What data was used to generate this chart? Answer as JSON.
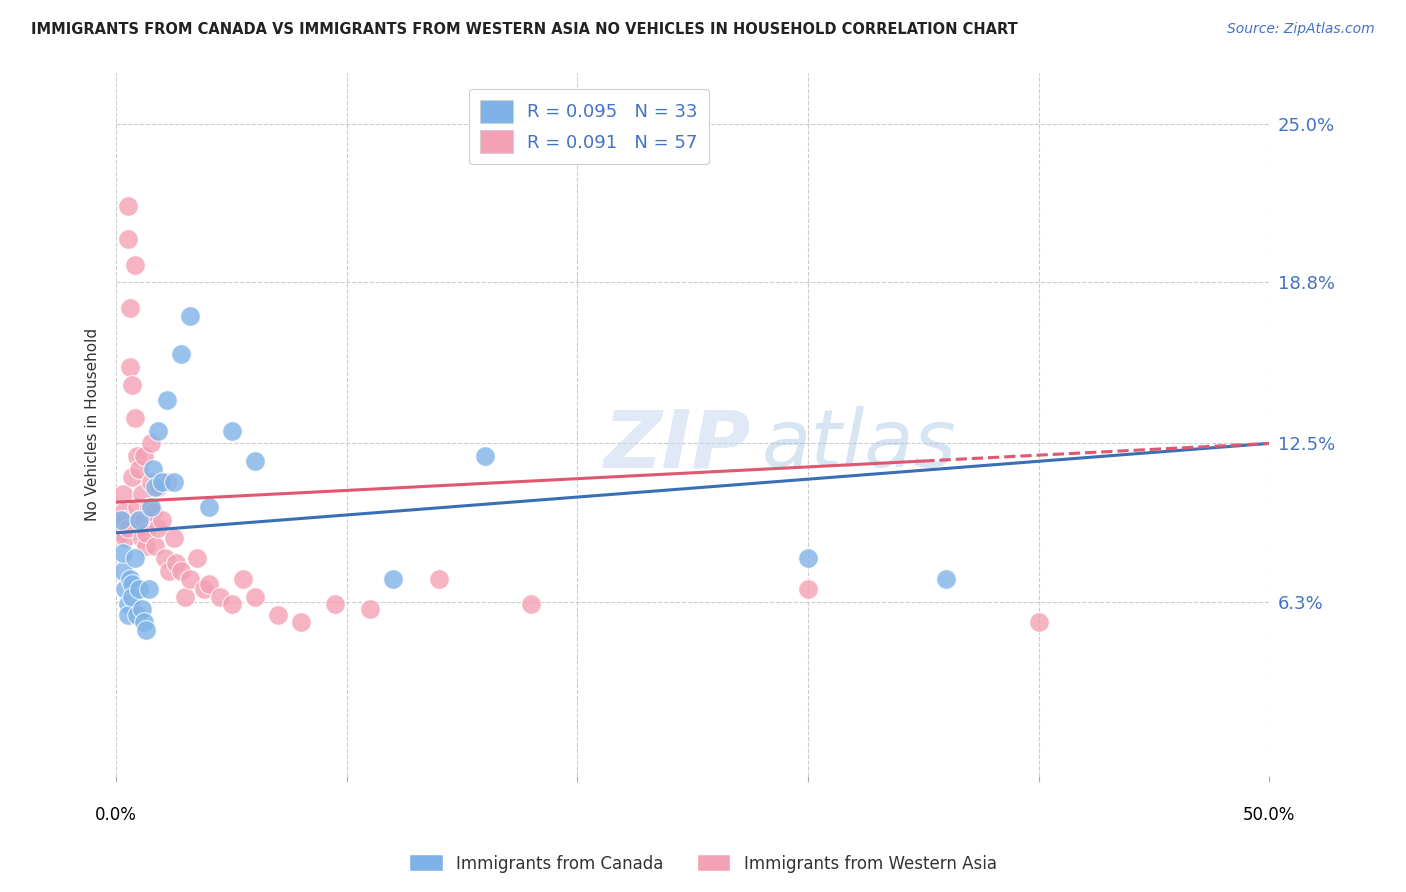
{
  "title": "IMMIGRANTS FROM CANADA VS IMMIGRANTS FROM WESTERN ASIA NO VEHICLES IN HOUSEHOLD CORRELATION CHART",
  "source": "Source: ZipAtlas.com",
  "ylabel": "No Vehicles in Household",
  "ytick_labels": [
    "6.3%",
    "12.5%",
    "18.8%",
    "25.0%"
  ],
  "ytick_values": [
    0.063,
    0.125,
    0.188,
    0.25
  ],
  "xlim": [
    0.0,
    0.5
  ],
  "ylim": [
    -0.005,
    0.27
  ],
  "r_canada": 0.095,
  "n_canada": 33,
  "r_western_asia": 0.091,
  "n_western_asia": 57,
  "color_canada": "#7FB3E8",
  "color_western_asia": "#F4A0B5",
  "trendline_canada": "#3A6FB5",
  "trendline_western_asia": "#E05870",
  "watermark_zip": "ZIP",
  "watermark_atlas": "atlas",
  "canada_x": [
    0.002,
    0.003,
    0.003,
    0.004,
    0.005,
    0.005,
    0.006,
    0.007,
    0.007,
    0.008,
    0.009,
    0.01,
    0.01,
    0.011,
    0.012,
    0.013,
    0.014,
    0.015,
    0.016,
    0.017,
    0.018,
    0.02,
    0.022,
    0.025,
    0.028,
    0.032,
    0.04,
    0.05,
    0.06,
    0.12,
    0.16,
    0.3,
    0.36
  ],
  "canada_y": [
    0.095,
    0.075,
    0.082,
    0.068,
    0.062,
    0.058,
    0.072,
    0.07,
    0.065,
    0.08,
    0.058,
    0.068,
    0.095,
    0.06,
    0.055,
    0.052,
    0.068,
    0.1,
    0.115,
    0.108,
    0.13,
    0.11,
    0.142,
    0.11,
    0.16,
    0.175,
    0.1,
    0.13,
    0.118,
    0.072,
    0.12,
    0.08,
    0.072
  ],
  "western_asia_x": [
    0.001,
    0.002,
    0.002,
    0.003,
    0.003,
    0.004,
    0.004,
    0.005,
    0.005,
    0.005,
    0.006,
    0.006,
    0.007,
    0.007,
    0.008,
    0.008,
    0.009,
    0.009,
    0.01,
    0.01,
    0.011,
    0.011,
    0.012,
    0.012,
    0.013,
    0.013,
    0.014,
    0.015,
    0.015,
    0.016,
    0.017,
    0.018,
    0.018,
    0.02,
    0.021,
    0.022,
    0.023,
    0.025,
    0.026,
    0.028,
    0.03,
    0.032,
    0.035,
    0.038,
    0.04,
    0.045,
    0.05,
    0.055,
    0.06,
    0.07,
    0.08,
    0.095,
    0.11,
    0.14,
    0.18,
    0.3,
    0.4
  ],
  "western_asia_y": [
    0.095,
    0.095,
    0.09,
    0.105,
    0.098,
    0.095,
    0.088,
    0.218,
    0.205,
    0.092,
    0.178,
    0.155,
    0.148,
    0.112,
    0.195,
    0.135,
    0.12,
    0.1,
    0.115,
    0.095,
    0.088,
    0.105,
    0.12,
    0.095,
    0.085,
    0.09,
    0.1,
    0.125,
    0.11,
    0.098,
    0.085,
    0.108,
    0.092,
    0.095,
    0.08,
    0.11,
    0.075,
    0.088,
    0.078,
    0.075,
    0.065,
    0.072,
    0.08,
    0.068,
    0.07,
    0.065,
    0.062,
    0.072,
    0.065,
    0.058,
    0.055,
    0.062,
    0.06,
    0.072,
    0.062,
    0.068,
    0.055
  ]
}
